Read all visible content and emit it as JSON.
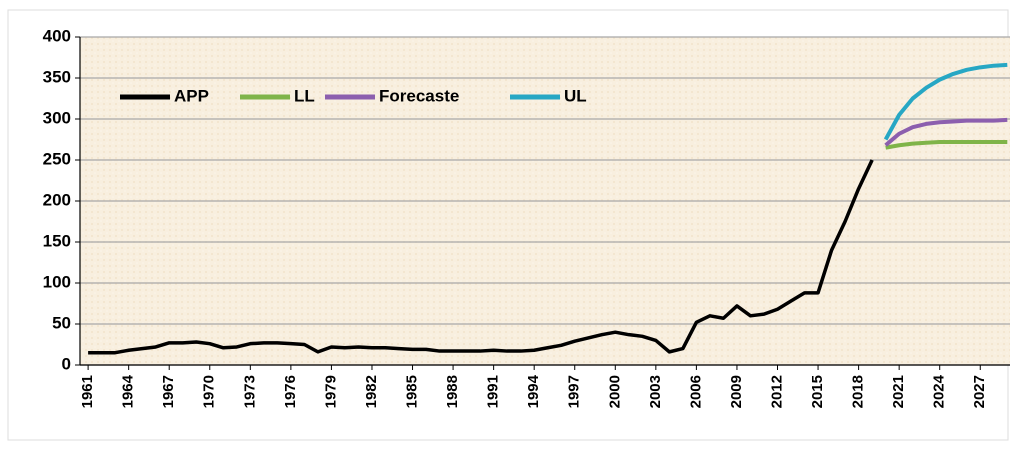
{
  "chart_data": {
    "type": "line",
    "xlim": [
      1960.4,
      2029.2
    ],
    "xticks": [
      1961,
      1964,
      1967,
      1970,
      1973,
      1976,
      1979,
      1982,
      1985,
      1988,
      1991,
      1994,
      1997,
      2000,
      2003,
      2006,
      2009,
      2012,
      2015,
      2018,
      2021,
      2024,
      2027
    ],
    "ylim": [
      0,
      400
    ],
    "yticks": [
      0,
      50,
      100,
      150,
      200,
      250,
      300,
      350,
      400
    ],
    "grid": true,
    "legend": "top-left",
    "series": [
      {
        "name": "APP",
        "color": "#000000",
        "x": [
          1961,
          1962,
          1963,
          1964,
          1965,
          1966,
          1967,
          1968,
          1969,
          1970,
          1971,
          1972,
          1973,
          1974,
          1975,
          1976,
          1977,
          1978,
          1979,
          1980,
          1981,
          1982,
          1983,
          1984,
          1985,
          1986,
          1987,
          1988,
          1989,
          1990,
          1991,
          1992,
          1993,
          1994,
          1995,
          1996,
          1997,
          1998,
          1999,
          2000,
          2001,
          2002,
          2003,
          2004,
          2005,
          2006,
          2007,
          2008,
          2009,
          2010,
          2011,
          2012,
          2013,
          2014,
          2015,
          2016,
          2017,
          2018,
          2019
        ],
        "values": [
          15,
          15,
          15,
          18,
          20,
          22,
          27,
          27,
          28,
          26,
          21,
          22,
          26,
          27,
          27,
          26,
          25,
          16,
          22,
          21,
          22,
          21,
          21,
          20,
          19,
          19,
          17,
          17,
          17,
          17,
          18,
          17,
          17,
          18,
          21,
          24,
          29,
          33,
          37,
          40,
          37,
          35,
          30,
          16,
          20,
          52,
          60,
          57,
          72,
          60,
          62,
          68,
          78,
          88,
          88,
          140,
          175,
          215,
          250
        ]
      },
      {
        "name": "LL",
        "color": "#7fb449",
        "x": [
          2020,
          2021,
          2022,
          2023,
          2024,
          2025,
          2026,
          2027,
          2028,
          2029
        ],
        "values": [
          265,
          268,
          270,
          271,
          272,
          272,
          272,
          272,
          272,
          272
        ]
      },
      {
        "name": "Forecaste",
        "color": "#8c5fae",
        "x": [
          2020,
          2021,
          2022,
          2023,
          2024,
          2025,
          2026,
          2027,
          2028,
          2029
        ],
        "values": [
          268,
          282,
          290,
          294,
          296,
          297,
          298,
          298,
          298,
          299
        ]
      },
      {
        "name": "UL",
        "color": "#27a7c4",
        "x": [
          2020,
          2021,
          2022,
          2023,
          2024,
          2025,
          2026,
          2027,
          2028,
          2029
        ],
        "values": [
          275,
          305,
          325,
          338,
          348,
          355,
          360,
          363,
          365,
          366
        ]
      }
    ]
  }
}
